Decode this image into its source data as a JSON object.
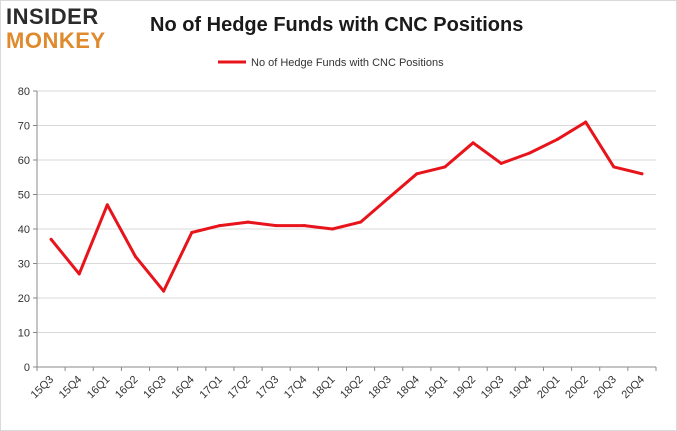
{
  "logo": {
    "line1": "INSIDER",
    "line2": "MONKEY",
    "colors": {
      "line1": "#2b2b2b",
      "line2": "#e08a2e"
    }
  },
  "chart_data": {
    "type": "line",
    "title": "No of Hedge Funds with CNC Positions",
    "xlabel": "",
    "ylabel": "",
    "categories": [
      "15Q3",
      "15Q4",
      "16Q1",
      "16Q2",
      "16Q3",
      "16Q4",
      "17Q1",
      "17Q2",
      "17Q3",
      "17Q4",
      "18Q1",
      "18Q2",
      "18Q3",
      "18Q4",
      "19Q1",
      "19Q2",
      "19Q3",
      "19Q4",
      "20Q1",
      "20Q2",
      "20Q3",
      "20Q4"
    ],
    "series": [
      {
        "name": "No of Hedge Funds with CNC Positions",
        "color": "#e8141b",
        "values": [
          37,
          27,
          47,
          32,
          22,
          39,
          41,
          42,
          41,
          41,
          40,
          42,
          49,
          56,
          58,
          65,
          59,
          62,
          66,
          71,
          58,
          56
        ]
      }
    ],
    "ylim": [
      0,
      80
    ],
    "yticks": [
      0,
      10,
      20,
      30,
      40,
      50,
      60,
      70,
      80
    ],
    "grid": true,
    "legend_position": "top-center"
  }
}
